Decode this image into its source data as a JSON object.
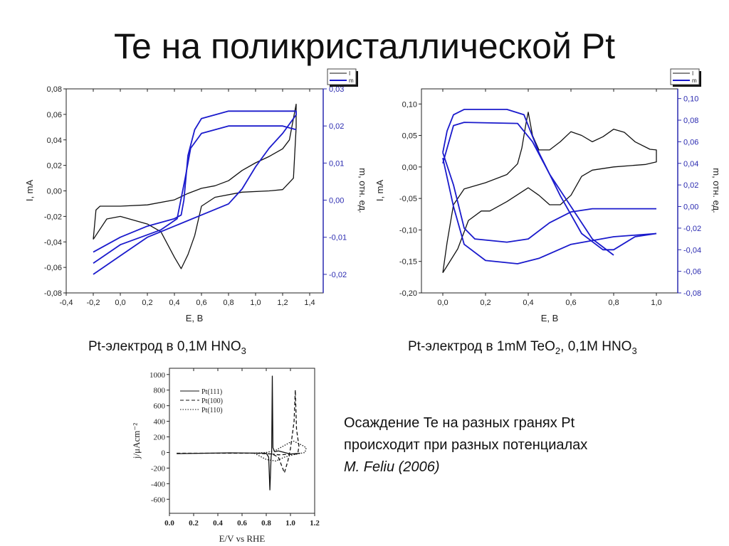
{
  "slide": {
    "title": "Te на поликристаллической Pt",
    "caption_left": {
      "text": "Pt-электрод в 0,1M HNO",
      "sub": "3"
    },
    "caption_right": {
      "text": "Pt-электрод в 1mM TeO",
      "sub1": "2",
      "text2": ", 0,1M HNO",
      "sub2": "3"
    },
    "note": {
      "line1": "Осаждение Te на разных гранях Pt",
      "line2": "происходит при разных потенциалах",
      "citation": "M. Feliu (2006)"
    }
  },
  "colors": {
    "current": "#111111",
    "mass": "#1a1acc",
    "right_axis": "#2a2ab0"
  },
  "chart_data": [
    {
      "type": "line",
      "xlabel": "E, В",
      "ylabel": "I, mA",
      "y2label": "m, отн. ед.",
      "xlim": [
        -0.4,
        1.5
      ],
      "ylim": [
        -0.08,
        0.08
      ],
      "y2lim": [
        -0.025,
        0.03
      ],
      "x_ticks": [
        "-0,4",
        "-0,2",
        "0,0",
        "0,2",
        "0,4",
        "0,6",
        "0,8",
        "1,0",
        "1,2",
        "1,4"
      ],
      "y_ticks": [
        "0,08",
        "0,06",
        "0,04",
        "0,02",
        "0,00",
        "-0,02",
        "-0,04",
        "-0,06",
        "-0,08"
      ],
      "y2_ticks": [
        "0,03",
        "0,02",
        "0,01",
        "0,00",
        "-0,01",
        "-0,02"
      ],
      "legend": [
        "I",
        "m"
      ],
      "legend_position": "top-right",
      "series": [
        {
          "name": "I",
          "axis": "left",
          "points": [
            [
              -0.2,
              -0.038
            ],
            [
              -0.18,
              -0.015
            ],
            [
              -0.15,
              -0.012
            ],
            [
              0.0,
              -0.012
            ],
            [
              0.2,
              -0.011
            ],
            [
              0.4,
              -0.007
            ],
            [
              0.5,
              -0.002
            ],
            [
              0.6,
              0.002
            ],
            [
              0.7,
              0.004
            ],
            [
              0.8,
              0.008
            ],
            [
              0.9,
              0.016
            ],
            [
              1.0,
              0.022
            ],
            [
              1.1,
              0.027
            ],
            [
              1.2,
              0.033
            ],
            [
              1.25,
              0.04
            ],
            [
              1.3,
              0.068
            ],
            [
              1.3,
              0.05
            ],
            [
              1.28,
              0.01
            ],
            [
              1.2,
              0.001
            ],
            [
              1.1,
              0.0
            ],
            [
              0.9,
              -0.001
            ],
            [
              0.7,
              -0.005
            ],
            [
              0.6,
              -0.012
            ],
            [
              0.55,
              -0.035
            ],
            [
              0.5,
              -0.05
            ],
            [
              0.45,
              -0.061
            ],
            [
              0.4,
              -0.052
            ],
            [
              0.3,
              -0.032
            ],
            [
              0.2,
              -0.026
            ],
            [
              0.0,
              -0.02
            ],
            [
              -0.1,
              -0.022
            ],
            [
              -0.2,
              -0.038
            ]
          ]
        },
        {
          "name": "m",
          "axis": "right",
          "points": [
            [
              -0.2,
              -0.02
            ],
            [
              0.0,
              -0.015
            ],
            [
              0.2,
              -0.01
            ],
            [
              0.4,
              -0.007
            ],
            [
              0.6,
              -0.004
            ],
            [
              0.8,
              -0.001
            ],
            [
              0.9,
              0.003
            ],
            [
              1.0,
              0.009
            ],
            [
              1.1,
              0.014
            ],
            [
              1.2,
              0.018
            ],
            [
              1.3,
              0.023
            ],
            [
              1.3,
              0.024
            ],
            [
              1.2,
              0.024
            ],
            [
              1.0,
              0.024
            ],
            [
              0.8,
              0.024
            ],
            [
              0.6,
              0.022
            ],
            [
              0.55,
              0.019
            ],
            [
              0.5,
              0.012
            ],
            [
              0.47,
              0.0
            ],
            [
              0.45,
              -0.004
            ],
            [
              0.4,
              -0.005
            ],
            [
              0.2,
              -0.007
            ],
            [
              0.0,
              -0.01
            ],
            [
              -0.2,
              -0.014
            ]
          ]
        },
        {
          "name": "m",
          "axis": "right",
          "points": [
            [
              -0.2,
              -0.017
            ],
            [
              0.0,
              -0.012
            ],
            [
              0.3,
              -0.008
            ],
            [
              0.42,
              -0.005
            ],
            [
              0.48,
              0.006
            ],
            [
              0.52,
              0.014
            ],
            [
              0.6,
              0.018
            ],
            [
              0.8,
              0.02
            ],
            [
              1.0,
              0.02
            ],
            [
              1.2,
              0.02
            ],
            [
              1.3,
              0.019
            ]
          ]
        }
      ]
    },
    {
      "type": "line",
      "xlabel": "E, В",
      "ylabel": "I, mA",
      "y2label": "m, отн. ед.",
      "xlim": [
        -0.1,
        1.1
      ],
      "ylim": [
        -0.2,
        0.124
      ],
      "y2lim": [
        -0.08,
        0.109
      ],
      "x_ticks": [
        "0,0",
        "0,2",
        "0,4",
        "0,6",
        "0,8",
        "1,0"
      ],
      "y_ticks": [
        "0,10",
        "0,05",
        "0,00",
        "-0,05",
        "-0,10",
        "-0,15",
        "-0,20"
      ],
      "y2_ticks": [
        "0,10",
        "0,08",
        "0,06",
        "0,04",
        "0,02",
        "0,00",
        "-0,02",
        "-0,04",
        "-0,06",
        "-0,08"
      ],
      "legend": [
        "I",
        "m"
      ],
      "legend_position": "top-right",
      "series": [
        {
          "name": "I",
          "axis": "left",
          "points": [
            [
              0,
              -0.168
            ],
            [
              0.02,
              -0.12
            ],
            [
              0.05,
              -0.06
            ],
            [
              0.1,
              -0.035
            ],
            [
              0.2,
              -0.025
            ],
            [
              0.3,
              -0.012
            ],
            [
              0.35,
              0.005
            ],
            [
              0.37,
              0.03
            ],
            [
              0.39,
              0.07
            ],
            [
              0.4,
              0.087
            ],
            [
              0.42,
              0.05
            ],
            [
              0.45,
              0.027
            ],
            [
              0.5,
              0.027
            ],
            [
              0.55,
              0.04
            ],
            [
              0.6,
              0.056
            ],
            [
              0.65,
              0.05
            ],
            [
              0.7,
              0.04
            ],
            [
              0.75,
              0.048
            ],
            [
              0.8,
              0.06
            ],
            [
              0.85,
              0.055
            ],
            [
              0.9,
              0.04
            ],
            [
              0.97,
              0.028
            ],
            [
              1.0,
              0.027
            ],
            [
              1.0,
              0.008
            ],
            [
              0.95,
              0.004
            ],
            [
              0.8,
              0.0
            ],
            [
              0.7,
              -0.005
            ],
            [
              0.65,
              -0.015
            ],
            [
              0.6,
              -0.045
            ],
            [
              0.55,
              -0.06
            ],
            [
              0.5,
              -0.06
            ],
            [
              0.45,
              -0.045
            ],
            [
              0.4,
              -0.033
            ],
            [
              0.3,
              -0.055
            ],
            [
              0.22,
              -0.07
            ],
            [
              0.18,
              -0.07
            ],
            [
              0.12,
              -0.085
            ],
            [
              0.07,
              -0.13
            ],
            [
              0,
              -0.168
            ]
          ]
        },
        {
          "name": "m",
          "axis": "right",
          "points": [
            [
              0,
              0.05
            ],
            [
              0.02,
              0.07
            ],
            [
              0.05,
              0.085
            ],
            [
              0.1,
              0.09
            ],
            [
              0.3,
              0.09
            ],
            [
              0.38,
              0.085
            ],
            [
              0.45,
              0.05
            ],
            [
              0.55,
              0.01
            ],
            [
              0.65,
              -0.025
            ],
            [
              0.75,
              -0.04
            ],
            [
              0.8,
              -0.04
            ],
            [
              0.9,
              -0.028
            ],
            [
              1.0,
              -0.025
            ]
          ]
        },
        {
          "name": "m",
          "axis": "right",
          "points": [
            [
              0,
              0.05
            ],
            [
              0.05,
              0.02
            ],
            [
              0.1,
              -0.02
            ],
            [
              0.15,
              -0.03
            ],
            [
              0.3,
              -0.033
            ],
            [
              0.4,
              -0.03
            ],
            [
              0.5,
              -0.015
            ],
            [
              0.6,
              -0.005
            ],
            [
              0.7,
              -0.002
            ],
            [
              1.0,
              -0.002
            ]
          ]
        },
        {
          "name": "m",
          "axis": "right",
          "points": [
            [
              0,
              0.045
            ],
            [
              0.05,
              0.0
            ],
            [
              0.1,
              -0.035
            ],
            [
              0.2,
              -0.05
            ],
            [
              0.35,
              -0.053
            ],
            [
              0.45,
              -0.048
            ],
            [
              0.6,
              -0.035
            ],
            [
              0.8,
              -0.028
            ],
            [
              1.0,
              -0.025
            ]
          ]
        },
        {
          "name": "m",
          "axis": "right",
          "points": [
            [
              0,
              0.04
            ],
            [
              0.05,
              0.075
            ],
            [
              0.1,
              0.078
            ],
            [
              0.35,
              0.077
            ],
            [
              0.42,
              0.06
            ],
            [
              0.5,
              0.03
            ],
            [
              0.6,
              0.0
            ],
            [
              0.7,
              -0.03
            ],
            [
              0.8,
              -0.045
            ]
          ]
        }
      ]
    },
    {
      "type": "line",
      "xlabel": "E/V vs RHE",
      "ylabel": "j/μAcm⁻²",
      "xlim": [
        0.0,
        1.2
      ],
      "ylim": [
        -780,
        1080
      ],
      "x_ticks": [
        "0.0",
        "0.2",
        "0.4",
        "0.6",
        "0.8",
        "1.0",
        "1.2"
      ],
      "y_ticks": [
        "1000",
        "800",
        "600",
        "400",
        "200",
        "0",
        "-200",
        "-400",
        "-600"
      ],
      "legend_position": "top-left",
      "series": [
        {
          "name": "Pt(111)",
          "style": "solid",
          "points": [
            [
              0.06,
              -15
            ],
            [
              0.5,
              -5
            ],
            [
              0.8,
              -10
            ],
            [
              0.82,
              -60
            ],
            [
              0.83,
              -480
            ],
            [
              0.84,
              -60
            ],
            [
              0.845,
              0
            ],
            [
              0.85,
              980
            ],
            [
              0.855,
              60
            ],
            [
              0.87,
              10
            ],
            [
              0.9,
              20
            ],
            [
              1.0,
              -20
            ],
            [
              1.08,
              -10
            ]
          ]
        },
        {
          "name": "Pt(100)",
          "style": "dashed",
          "points": [
            [
              0.06,
              -10
            ],
            [
              0.7,
              -10
            ],
            [
              0.85,
              -20
            ],
            [
              0.9,
              -60
            ],
            [
              0.95,
              -260
            ],
            [
              0.98,
              -100
            ],
            [
              1.0,
              50
            ],
            [
              1.03,
              400
            ],
            [
              1.04,
              800
            ],
            [
              1.05,
              300
            ],
            [
              1.07,
              80
            ],
            [
              1.06,
              -20
            ],
            [
              0.9,
              -30
            ],
            [
              0.85,
              -20
            ]
          ]
        },
        {
          "name": "Pt(110)",
          "style": "dotted",
          "points": [
            [
              0.7,
              -10
            ],
            [
              0.8,
              -90
            ],
            [
              0.88,
              -110
            ],
            [
              0.95,
              -60
            ],
            [
              1.05,
              -20
            ],
            [
              1.12,
              0
            ],
            [
              1.13,
              60
            ],
            [
              1.1,
              90
            ],
            [
              1.02,
              150
            ],
            [
              0.95,
              90
            ],
            [
              0.88,
              30
            ],
            [
              0.8,
              0
            ],
            [
              0.7,
              -10
            ]
          ]
        }
      ]
    }
  ]
}
